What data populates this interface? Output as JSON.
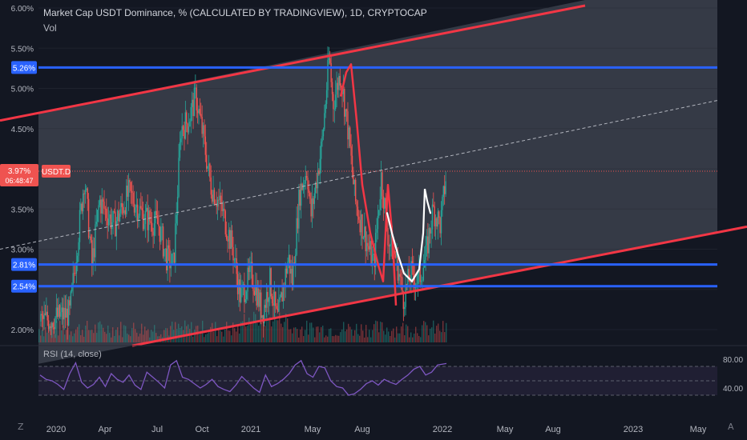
{
  "header": {
    "title": "Market Cap USDT Dominance, % (CALCULATED BY TRADINGVIEW), 1D, CRYPTOCAP",
    "subtitle": "Vol"
  },
  "rsi": {
    "label": "RSI (14, close)",
    "ticks": [
      "80.00",
      "40.00"
    ]
  },
  "icons": {
    "left": "Z",
    "right": "A"
  },
  "colors": {
    "background": "#131722",
    "up": "#26a69a",
    "down": "#ef5350",
    "trendline": "#f23645",
    "hline": "#2962ff",
    "rsi": "#7e57c2",
    "drawing": "#ffffff"
  },
  "chart_data": {
    "type": "candlestick",
    "title": "Market Cap USDT Dominance, % (CALCULATED BY TRADINGVIEW), 1D, CRYPTOCAP",
    "y_tick_labels": [
      "6.00%",
      "5.50%",
      "5.00%",
      "4.50%",
      "3.50%",
      "3.00%",
      "2.00%"
    ],
    "x_tick_labels": [
      "2020",
      "Apr",
      "Jul",
      "Oct",
      "2021",
      "May",
      "Aug",
      "2022",
      "May",
      "Aug",
      "2023",
      "May"
    ],
    "ylim": [
      1.8,
      6.0
    ],
    "price_label": {
      "value": "3.97%",
      "countdown": "06:48:47",
      "symbol": "USDT.D"
    },
    "horizontal_levels": [
      {
        "value": 5.26,
        "label": "5.26%"
      },
      {
        "value": 2.81,
        "label": "2.81%"
      },
      {
        "value": 2.54,
        "label": "2.54%"
      }
    ],
    "series": {
      "close_path": [
        [
          0,
          2.1
        ],
        [
          40,
          2.2
        ],
        [
          60,
          3.9
        ],
        [
          70,
          2.8
        ],
        [
          80,
          3.6
        ],
        [
          100,
          3.3
        ],
        [
          120,
          3.7
        ],
        [
          140,
          3.4
        ],
        [
          160,
          3.3
        ],
        [
          170,
          2.9
        ],
        [
          180,
          2.8
        ],
        [
          190,
          4.5
        ],
        [
          200,
          4.6
        ],
        [
          210,
          4.9
        ],
        [
          220,
          4.4
        ],
        [
          230,
          3.8
        ],
        [
          245,
          3.5
        ],
        [
          260,
          3.0
        ],
        [
          270,
          2.4
        ],
        [
          285,
          2.7
        ],
        [
          300,
          2.2
        ],
        [
          310,
          2.6
        ],
        [
          320,
          2.1
        ],
        [
          335,
          2.9
        ],
        [
          340,
          2.6
        ],
        [
          350,
          3.7
        ],
        [
          360,
          4.0
        ],
        [
          365,
          3.4
        ],
        [
          380,
          4.3
        ],
        [
          390,
          5.4
        ],
        [
          395,
          4.8
        ],
        [
          405,
          5.2
        ],
        [
          415,
          4.5
        ],
        [
          425,
          3.6
        ],
        [
          440,
          3.1
        ],
        [
          450,
          2.8
        ],
        [
          460,
          3.9
        ],
        [
          470,
          3.1
        ],
        [
          480,
          2.9
        ],
        [
          490,
          2.4
        ],
        [
          500,
          2.7
        ],
        [
          510,
          2.6
        ],
        [
          520,
          2.9
        ],
        [
          530,
          3.5
        ],
        [
          540,
          3.3
        ],
        [
          548,
          3.97
        ]
      ],
      "rsi_path": [
        [
          0,
          58
        ],
        [
          8,
          52
        ],
        [
          16,
          50
        ],
        [
          24,
          45
        ],
        [
          32,
          38
        ],
        [
          40,
          60
        ],
        [
          48,
          75
        ],
        [
          56,
          48
        ],
        [
          64,
          40
        ],
        [
          72,
          45
        ],
        [
          80,
          55
        ],
        [
          88,
          42
        ],
        [
          96,
          60
        ],
        [
          104,
          52
        ],
        [
          112,
          48
        ],
        [
          120,
          58
        ],
        [
          128,
          44
        ],
        [
          136,
          38
        ],
        [
          144,
          62
        ],
        [
          152,
          55
        ],
        [
          160,
          48
        ],
        [
          168,
          40
        ],
        [
          176,
          72
        ],
        [
          184,
          78
        ],
        [
          192,
          55
        ],
        [
          200,
          52
        ],
        [
          208,
          46
        ],
        [
          216,
          40
        ],
        [
          224,
          45
        ],
        [
          232,
          52
        ],
        [
          240,
          42
        ],
        [
          248,
          38
        ],
        [
          256,
          35
        ],
        [
          264,
          44
        ],
        [
          272,
          56
        ],
        [
          280,
          48
        ],
        [
          288,
          40
        ],
        [
          296,
          34
        ],
        [
          304,
          58
        ],
        [
          312,
          42
        ],
        [
          320,
          46
        ],
        [
          328,
          52
        ],
        [
          336,
          60
        ],
        [
          344,
          72
        ],
        [
          352,
          78
        ],
        [
          360,
          60
        ],
        [
          368,
          55
        ],
        [
          376,
          70
        ],
        [
          384,
          68
        ],
        [
          392,
          50
        ],
        [
          400,
          42
        ],
        [
          408,
          40
        ],
        [
          416,
          30
        ],
        [
          424,
          32
        ],
        [
          432,
          38
        ],
        [
          440,
          46
        ],
        [
          448,
          50
        ],
        [
          456,
          44
        ],
        [
          464,
          52
        ],
        [
          472,
          48
        ],
        [
          480,
          45
        ],
        [
          488,
          52
        ],
        [
          496,
          58
        ],
        [
          504,
          66
        ],
        [
          512,
          70
        ],
        [
          520,
          58
        ],
        [
          528,
          62
        ],
        [
          536,
          72
        ],
        [
          548,
          74
        ]
      ]
    },
    "annotations": {
      "channel_upper": [
        [
          0,
          4.6
        ],
        [
          730,
          6.03
        ]
      ],
      "channel_lower": [
        [
          165,
          1.8
        ],
        [
          932,
          3.28
        ]
      ],
      "channel_mid": [
        [
          0,
          3.0
        ],
        [
          895,
          4.85
        ]
      ]
    }
  }
}
